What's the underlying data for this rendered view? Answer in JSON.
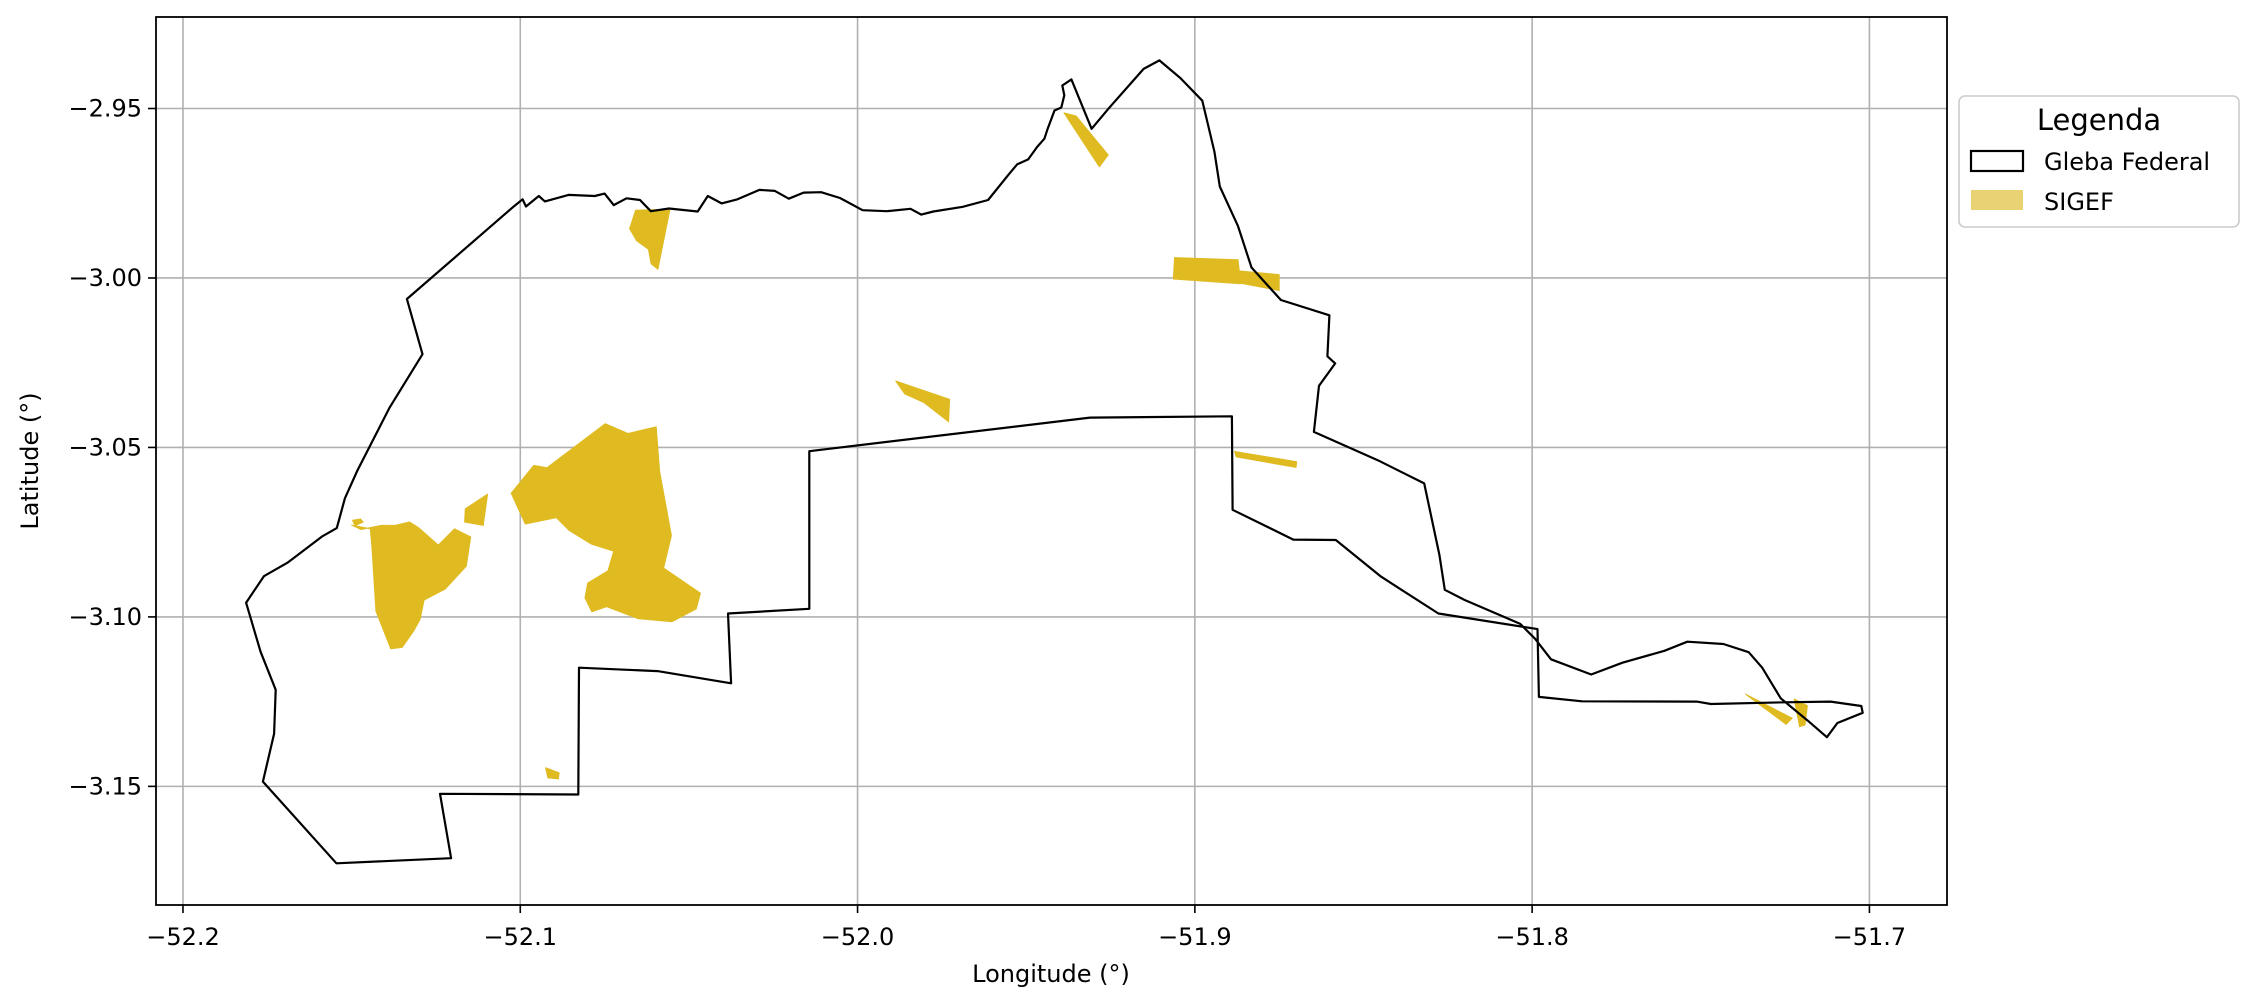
{
  "chart_data": {
    "type": "map",
    "xlabel": "Longitude (°)",
    "ylabel": "Latitude (°)",
    "xlim": [
      -52.208,
      -51.677
    ],
    "ylim": [
      -3.185,
      -2.923
    ],
    "x_ticks": [
      -52.2,
      -52.1,
      -52.0,
      -51.9,
      -51.8,
      -51.7
    ],
    "x_tick_labels": [
      "−52.2",
      "−52.1",
      "−52.0",
      "−51.9",
      "−51.8",
      "−51.7"
    ],
    "y_ticks": [
      -2.95,
      -3.0,
      -3.05,
      -3.1,
      -3.15
    ],
    "y_tick_labels": [
      "−2.95",
      "−3.00",
      "−3.05",
      "−3.10",
      "−3.15"
    ],
    "grid": true,
    "legend": {
      "title": "Legenda",
      "placement": "outside-right-top",
      "entries": [
        {
          "label": "Gleba Federal",
          "style": "outline",
          "color": "#000000"
        },
        {
          "label": "SIGEF",
          "style": "fill",
          "color": "#e8d273"
        }
      ]
    },
    "colors": {
      "gleba_stroke": "#000000",
      "sigef_fill": "#dfbb21",
      "grid": "#b0b0b0"
    },
    "series": [
      {
        "name": "Gleba Federal",
        "type": "polygon-outline",
        "points": [
          [
            -52.1336,
            -3.0062
          ],
          [
            -52.1018,
            -2.9788
          ],
          [
            -52.0993,
            -2.9768
          ],
          [
            -52.0983,
            -2.9789
          ],
          [
            -52.0945,
            -2.9758
          ],
          [
            -52.0927,
            -2.9774
          ],
          [
            -52.0857,
            -2.9755
          ],
          [
            -52.0779,
            -2.9758
          ],
          [
            -52.075,
            -2.9751
          ],
          [
            -52.0723,
            -2.9785
          ],
          [
            -52.0685,
            -2.9765
          ],
          [
            -52.0645,
            -2.977
          ],
          [
            -52.0613,
            -2.9803
          ],
          [
            -52.0559,
            -2.9795
          ],
          [
            -52.0474,
            -2.9804
          ],
          [
            -52.0444,
            -2.9758
          ],
          [
            -52.0403,
            -2.978
          ],
          [
            -52.0356,
            -2.9768
          ],
          [
            -52.0291,
            -2.974
          ],
          [
            -52.0245,
            -2.9743
          ],
          [
            -52.0204,
            -2.9766
          ],
          [
            -52.016,
            -2.9748
          ],
          [
            -52.0108,
            -2.9747
          ],
          [
            -52.0052,
            -2.9764
          ],
          [
            -51.9985,
            -2.98
          ],
          [
            -51.9914,
            -2.9803
          ],
          [
            -51.9843,
            -2.9796
          ],
          [
            -51.9811,
            -2.9813
          ],
          [
            -51.9775,
            -2.9804
          ],
          [
            -51.9688,
            -2.979
          ],
          [
            -51.9613,
            -2.977
          ],
          [
            -51.9553,
            -2.9696
          ],
          [
            -51.9527,
            -2.9665
          ],
          [
            -51.9494,
            -2.965
          ],
          [
            -51.9468,
            -2.9614
          ],
          [
            -51.9446,
            -2.9589
          ],
          [
            -51.9437,
            -2.9561
          ],
          [
            -51.9416,
            -2.9506
          ],
          [
            -51.9396,
            -2.9497
          ],
          [
            -51.9387,
            -2.9461
          ],
          [
            -51.9393,
            -2.9432
          ],
          [
            -51.9366,
            -2.9414
          ],
          [
            -51.9306,
            -2.956
          ],
          [
            -51.9254,
            -2.9498
          ],
          [
            -51.9152,
            -2.9383
          ],
          [
            -51.9105,
            -2.9358
          ],
          [
            -51.9043,
            -2.941
          ],
          [
            -51.8978,
            -2.9477
          ],
          [
            -51.8942,
            -2.9627
          ],
          [
            -51.8926,
            -2.973
          ],
          [
            -51.8872,
            -2.9847
          ],
          [
            -51.8832,
            -2.9969
          ],
          [
            -51.8745,
            -3.0065
          ],
          [
            -51.8601,
            -3.011
          ],
          [
            -51.8607,
            -3.0231
          ],
          [
            -51.8584,
            -3.0252
          ],
          [
            -51.8632,
            -3.0318
          ],
          [
            -51.8647,
            -3.0454
          ],
          [
            -51.8451,
            -3.0541
          ],
          [
            -51.832,
            -3.0606
          ],
          [
            -51.8275,
            -3.0817
          ],
          [
            -51.8259,
            -3.092
          ],
          [
            -51.82,
            -3.095
          ],
          [
            -51.8036,
            -3.102
          ],
          [
            -51.7991,
            -3.1065
          ],
          [
            -51.7944,
            -3.1125
          ],
          [
            -51.7825,
            -3.117
          ],
          [
            -51.7732,
            -3.1135
          ],
          [
            -51.7608,
            -3.11
          ],
          [
            -51.754,
            -3.1073
          ],
          [
            -51.7433,
            -3.108
          ],
          [
            -51.7358,
            -3.1104
          ],
          [
            -51.7318,
            -3.115
          ],
          [
            -51.7263,
            -3.124
          ],
          [
            -51.7183,
            -3.1306
          ],
          [
            -51.7126,
            -3.1355
          ],
          [
            -51.7095,
            -3.1313
          ],
          [
            -51.702,
            -3.1283
          ],
          [
            -51.7024,
            -3.1263
          ],
          [
            -51.7115,
            -3.125
          ],
          [
            -51.7253,
            -3.1252
          ],
          [
            -51.747,
            -3.1257
          ],
          [
            -51.7512,
            -3.125
          ],
          [
            -51.7852,
            -3.1249
          ],
          [
            -51.798,
            -3.1236
          ],
          [
            -51.7984,
            -3.1036
          ],
          [
            -51.8278,
            -3.099
          ],
          [
            -51.8448,
            -3.0881
          ],
          [
            -51.8582,
            -3.0773
          ],
          [
            -51.8708,
            -3.0772
          ],
          [
            -51.8888,
            -3.0684
          ],
          [
            -51.889,
            -3.0408
          ],
          [
            -51.9311,
            -3.0412
          ],
          [
            -52.0143,
            -3.0511
          ],
          [
            -52.0143,
            -3.0976
          ],
          [
            -52.0384,
            -3.099
          ],
          [
            -52.0375,
            -3.1196
          ],
          [
            -52.0593,
            -3.116
          ],
          [
            -52.0826,
            -3.115
          ],
          [
            -52.0828,
            -3.1524
          ],
          [
            -52.1238,
            -3.1522
          ],
          [
            -52.1205,
            -3.1712
          ],
          [
            -52.1545,
            -3.1727
          ],
          [
            -52.1763,
            -3.1486
          ],
          [
            -52.173,
            -3.1345
          ],
          [
            -52.1725,
            -3.1215
          ],
          [
            -52.177,
            -3.1103
          ],
          [
            -52.1813,
            -3.0958
          ],
          [
            -52.176,
            -3.088
          ],
          [
            -52.169,
            -3.084
          ],
          [
            -52.1588,
            -3.0763
          ],
          [
            -52.1544,
            -3.0738
          ],
          [
            -52.152,
            -3.065
          ],
          [
            -52.1483,
            -3.0568
          ],
          [
            -52.1387,
            -3.0382
          ],
          [
            -52.129,
            -3.0225
          ]
        ]
      },
      {
        "name": "SIGEF",
        "type": "polygon-fill",
        "polygons": [
          [
            [
              -52.0658,
              -2.98
            ],
            [
              -52.0556,
              -2.9797
            ],
            [
              -52.0592,
              -2.9974
            ],
            [
              -52.0612,
              -2.9958
            ],
            [
              -52.062,
              -2.9915
            ],
            [
              -52.0655,
              -2.989
            ],
            [
              -52.0676,
              -2.9855
            ]
          ],
          [
            [
              -51.9388,
              -2.9513
            ],
            [
              -51.9352,
              -2.9522
            ],
            [
              -51.9257,
              -2.9637
            ],
            [
              -51.9283,
              -2.9672
            ]
          ],
          [
            [
              -51.906,
              -2.994
            ],
            [
              -51.8872,
              -2.9946
            ],
            [
              -51.8864,
              -3.0017
            ],
            [
              -51.9064,
              -3.0003
            ]
          ],
          [
            [
              -51.887,
              -2.9979
            ],
            [
              -51.875,
              -2.999
            ],
            [
              -51.875,
              -3.0037
            ],
            [
              -51.8865,
              -3.0015
            ]
          ],
          [
            [
              -51.9887,
              -3.0304
            ],
            [
              -51.9727,
              -3.0358
            ],
            [
              -51.973,
              -3.0424
            ],
            [
              -51.9804,
              -3.0367
            ],
            [
              -51.986,
              -3.0342
            ]
          ],
          [
            [
              -51.8882,
              -3.0512
            ],
            [
              -51.8698,
              -3.0542
            ],
            [
              -51.87,
              -3.0559
            ],
            [
              -51.8877,
              -3.0528
            ]
          ],
          [
            [
              -52.1027,
              -3.0635
            ],
            [
              -52.096,
              -3.0553
            ],
            [
              -52.0921,
              -3.056
            ],
            [
              -52.0748,
              -3.043
            ],
            [
              -52.0681,
              -3.0459
            ],
            [
              -52.0597,
              -3.0439
            ],
            [
              -52.0587,
              -3.057
            ],
            [
              -52.0552,
              -3.076
            ],
            [
              -52.0575,
              -3.0856
            ],
            [
              -52.0466,
              -3.093
            ],
            [
              -52.0478,
              -3.0976
            ],
            [
              -52.055,
              -3.1014
            ],
            [
              -52.0651,
              -3.1005
            ],
            [
              -52.0744,
              -3.097
            ],
            [
              -52.0788,
              -3.0985
            ],
            [
              -52.0808,
              -3.0944
            ],
            [
              -52.08,
              -3.09
            ],
            [
              -52.074,
              -3.0864
            ],
            [
              -52.0723,
              -3.0806
            ],
            [
              -52.079,
              -3.0785
            ],
            [
              -52.0855,
              -3.0745
            ],
            [
              -52.0893,
              -3.0707
            ],
            [
              -52.0985,
              -3.0726
            ]
          ],
          [
            [
              -52.15,
              -3.0729
            ],
            [
              -52.1433,
              -3.0742
            ],
            [
              -52.1445,
              -3.0738
            ],
            [
              -52.144,
              -3.0793
            ],
            [
              -52.1428,
              -3.0983
            ],
            [
              -52.1384,
              -3.1094
            ],
            [
              -52.135,
              -3.109
            ],
            [
              -52.1315,
              -3.104
            ],
            [
              -52.1297,
              -3.1007
            ],
            [
              -52.1285,
              -3.095
            ],
            [
              -52.1223,
              -3.0918
            ],
            [
              -52.116,
              -3.085
            ],
            [
              -52.1147,
              -3.0764
            ],
            [
              -52.1195,
              -3.074
            ],
            [
              -52.1243,
              -3.0788
            ],
            [
              -52.13,
              -3.0738
            ],
            [
              -52.1328,
              -3.072
            ],
            [
              -52.1371,
              -3.073
            ],
            [
              -52.1412,
              -3.073
            ],
            [
              -52.1472,
              -3.0742
            ]
          ],
          [
            [
              -52.1163,
              -3.0681
            ],
            [
              -52.1097,
              -3.0638
            ],
            [
              -52.111,
              -3.073
            ],
            [
              -52.1165,
              -3.072
            ]
          ],
          [
            [
              -52.1497,
              -3.0715
            ],
            [
              -52.1473,
              -3.0711
            ],
            [
              -52.1466,
              -3.072
            ],
            [
              -52.149,
              -3.0731
            ]
          ],
          [
            [
              -51.7367,
              -3.1228
            ],
            [
              -51.7247,
              -3.1317
            ],
            [
              -51.7229,
              -3.1299
            ]
          ],
          [
            [
              -51.7223,
              -3.1242
            ],
            [
              -51.7184,
              -3.1262
            ],
            [
              -51.7191,
              -3.1319
            ],
            [
              -51.7207,
              -3.1324
            ]
          ],
          [
            [
              -52.0925,
              -3.1445
            ],
            [
              -52.0885,
              -3.146
            ],
            [
              -52.0887,
              -3.1478
            ],
            [
              -52.0918,
              -3.1475
            ]
          ]
        ]
      }
    ]
  }
}
